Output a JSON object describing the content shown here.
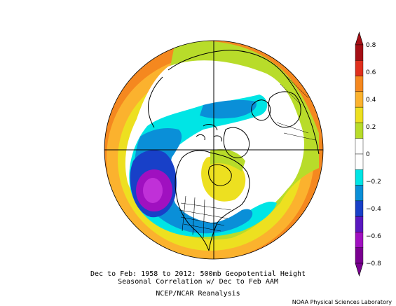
{
  "captions": {
    "line1": "Dec to Feb: 1958 to 2012: 500mb Geopotential Height",
    "line2": "Seasonal Correlation w/ Dec to Feb AAM",
    "line3": "NCEP/NCAR Reanalysis"
  },
  "credit": "NOAA Physical Sciences Laboratory",
  "colorbar": {
    "ticks": [
      "0.8",
      "0.6",
      "0.4",
      "0.2",
      "0",
      "−0.2",
      "−0.4",
      "−0.6",
      "−0.8"
    ],
    "colors": [
      "#a50f15",
      "#e0301e",
      "#f5881f",
      "#fbb22e",
      "#ede020",
      "#b8dc2a",
      "#ffffff",
      "#ffffff",
      "#00e5e5",
      "#0a8fd8",
      "#1840c8",
      "#5a18c0",
      "#a010c0",
      "#7a0090"
    ]
  },
  "map": {
    "projection": "north polar stereographic",
    "ocean_background": "#f5881f"
  }
}
